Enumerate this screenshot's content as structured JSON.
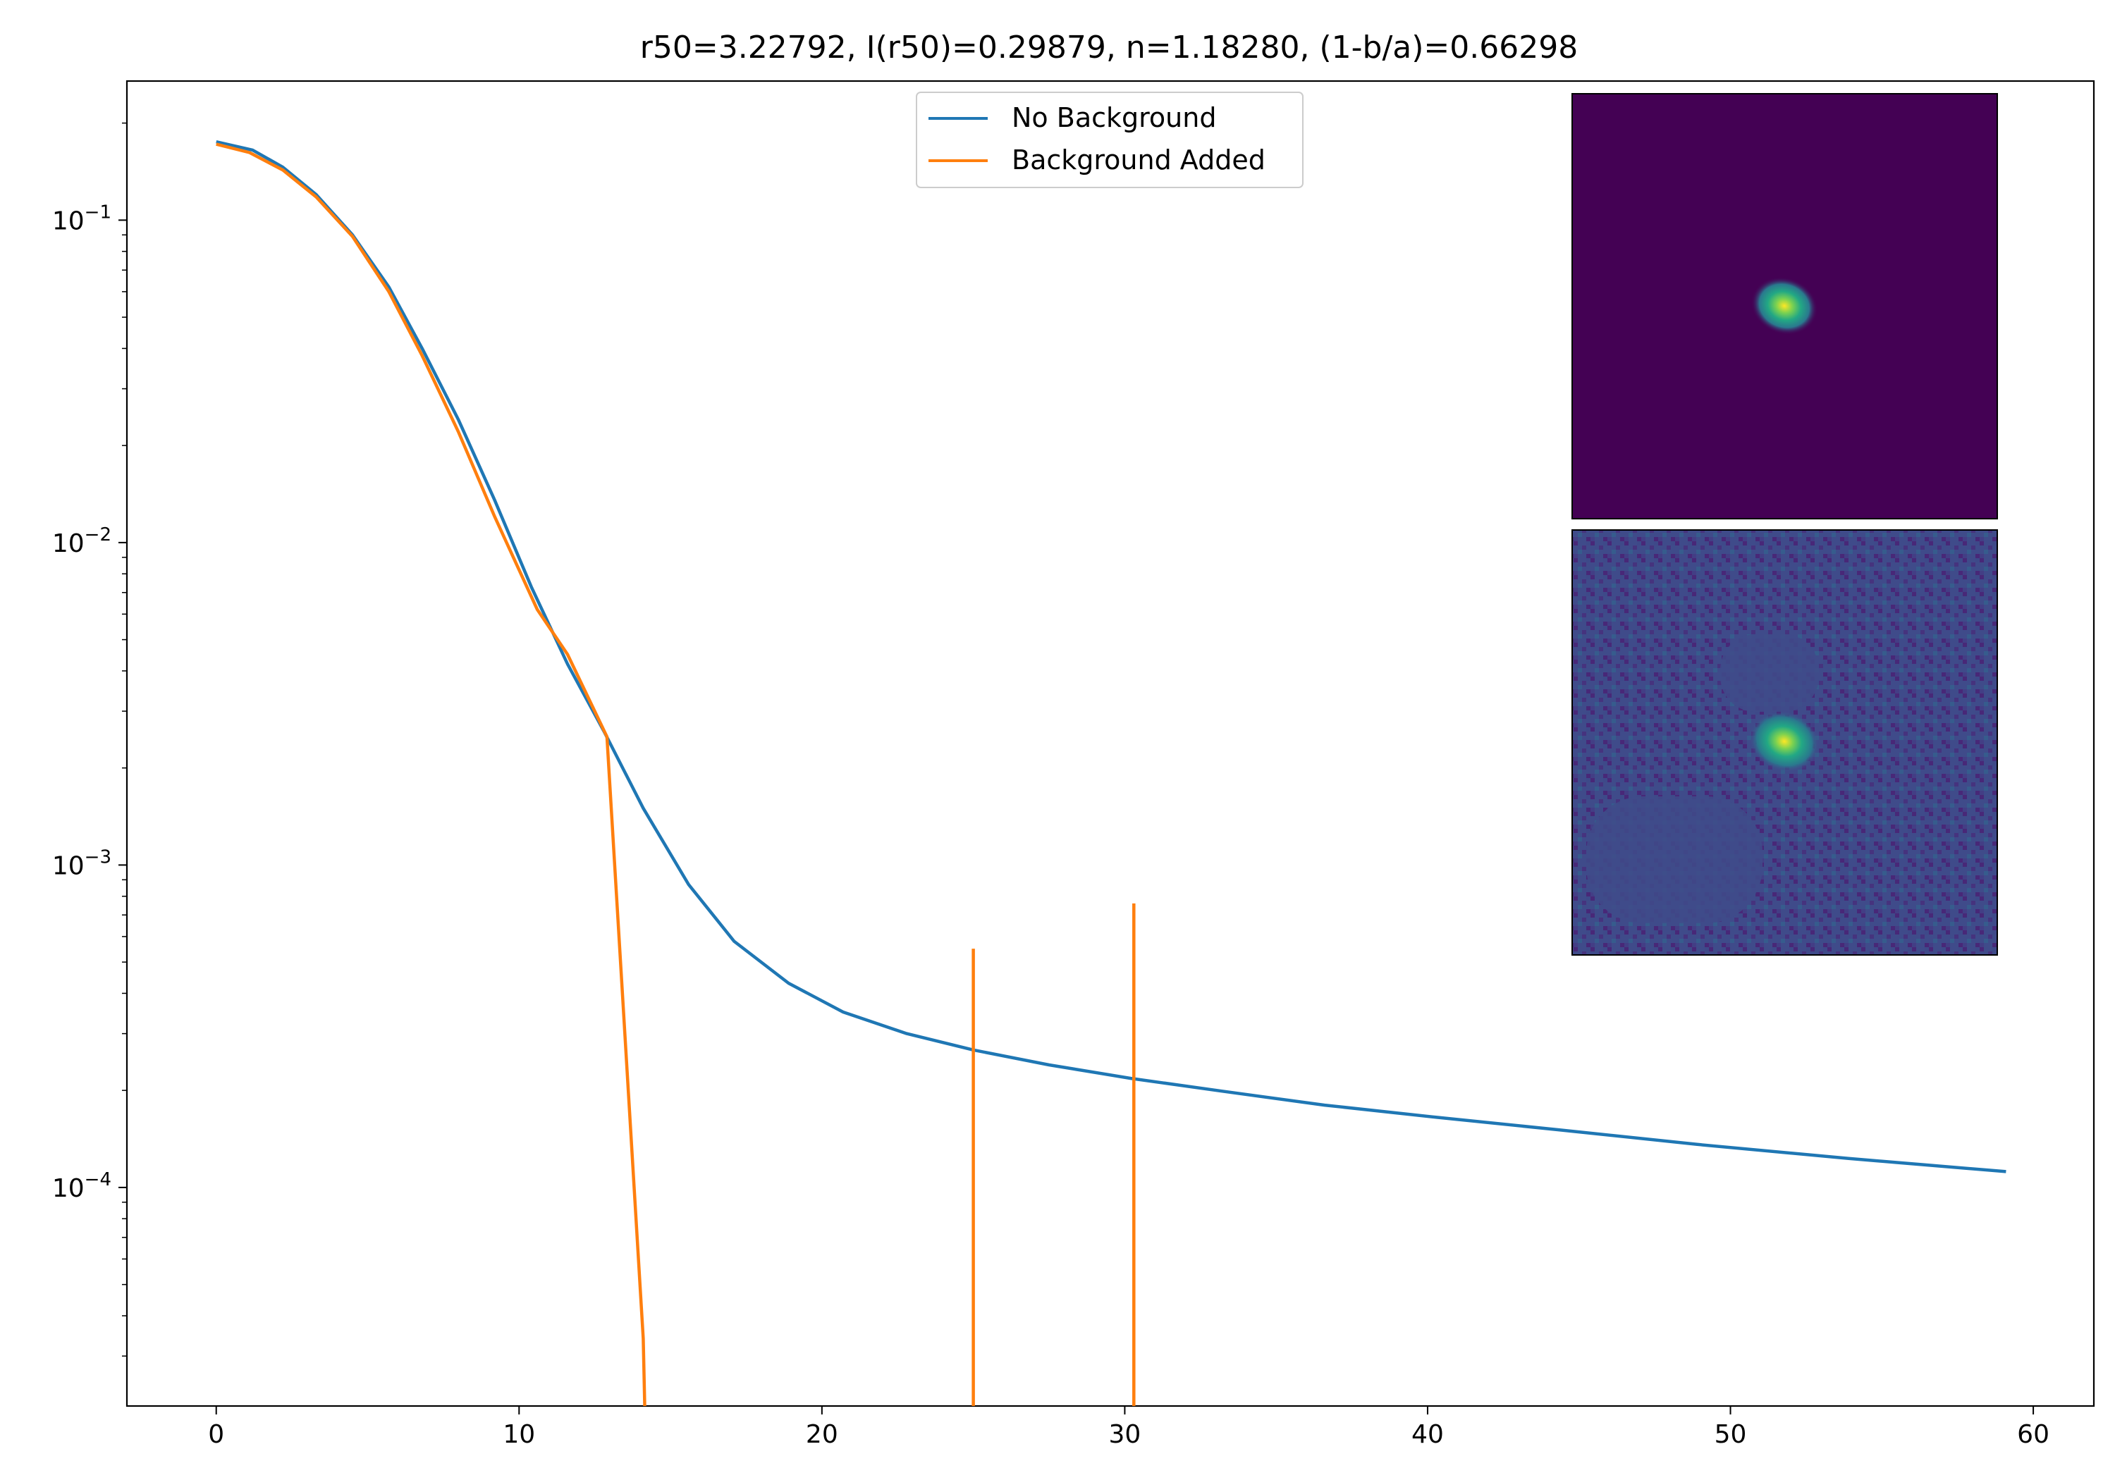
{
  "chart_data": {
    "type": "line",
    "title": "r50=3.22792, I(r50)=0.29879, n=1.18280, (1-b/a)=0.66298",
    "xlabel": "",
    "ylabel": "",
    "xlim": [
      -2.95,
      62.0
    ],
    "ylim": [
      2.1e-05,
      0.27
    ],
    "yscale": "log",
    "grid": false,
    "legend_position": "top-center",
    "x_ticks": [
      {
        "value": 0,
        "label": "0"
      },
      {
        "value": 10,
        "label": "10"
      },
      {
        "value": 20,
        "label": "20"
      },
      {
        "value": 30,
        "label": "30"
      },
      {
        "value": 40,
        "label": "40"
      },
      {
        "value": 50,
        "label": "50"
      },
      {
        "value": 60,
        "label": "60"
      }
    ],
    "y_ticks": [
      {
        "value": 0.1,
        "base": "10",
        "exp": "−1"
      },
      {
        "value": 0.01,
        "base": "10",
        "exp": "−2"
      },
      {
        "value": 0.001,
        "base": "10",
        "exp": "−3"
      },
      {
        "value": 0.0001,
        "base": "10",
        "exp": "−4"
      }
    ],
    "series": [
      {
        "name": "No Background",
        "color": "#1f77b4",
        "points": [
          [
            0,
            0.175
          ],
          [
            1.2,
            0.165
          ],
          [
            2.2,
            0.146
          ],
          [
            3.3,
            0.12
          ],
          [
            4.5,
            0.09
          ],
          [
            5.7,
            0.062
          ],
          [
            6.8,
            0.04
          ],
          [
            8.0,
            0.024
          ],
          [
            9.2,
            0.0135
          ],
          [
            10.4,
            0.0073
          ],
          [
            11.6,
            0.0042
          ],
          [
            12.8,
            0.0026
          ],
          [
            14.1,
            0.0015
          ],
          [
            15.6,
            0.00087
          ],
          [
            17.1,
            0.00058
          ],
          [
            18.9,
            0.00043
          ],
          [
            20.7,
            0.00035
          ],
          [
            22.8,
            0.0003
          ],
          [
            25.0,
            0.000267
          ],
          [
            27.5,
            0.00024
          ],
          [
            30.2,
            0.000218
          ],
          [
            33.2,
            0.000199
          ],
          [
            36.6,
            0.00018
          ],
          [
            40.3,
            0.000165
          ],
          [
            44.3,
            0.000151
          ],
          [
            48.9,
            0.000136
          ],
          [
            53.9,
            0.000123
          ],
          [
            59.1,
            0.000112
          ]
        ]
      },
      {
        "name": "Background Added",
        "color": "#ff7f0e",
        "points": [
          [
            0,
            0.172
          ],
          [
            1.1,
            0.162
          ],
          [
            2.2,
            0.143
          ],
          [
            3.3,
            0.118
          ],
          [
            4.5,
            0.089
          ],
          [
            5.7,
            0.06
          ],
          [
            6.8,
            0.038
          ],
          [
            8.0,
            0.022
          ],
          [
            9.2,
            0.012
          ],
          [
            10.6,
            0.0062
          ],
          [
            11.6,
            0.0045
          ],
          [
            12.9,
            0.0025
          ],
          [
            14.1,
            3.4e-05
          ],
          [
            14.15,
            2.1e-05
          ]
        ],
        "spikes": [
          {
            "x": 25.0,
            "top": 0.00055
          },
          {
            "x": 30.3,
            "top": 0.00076
          }
        ]
      }
    ],
    "insets": [
      {
        "name": "model-image",
        "colormap": "viridis",
        "background": "#440154",
        "blob_center": [
          0.5,
          0.5
        ]
      },
      {
        "name": "data-image",
        "colormap": "viridis",
        "background": "#3f4b8a",
        "blob_center": [
          0.5,
          0.49
        ]
      }
    ]
  }
}
